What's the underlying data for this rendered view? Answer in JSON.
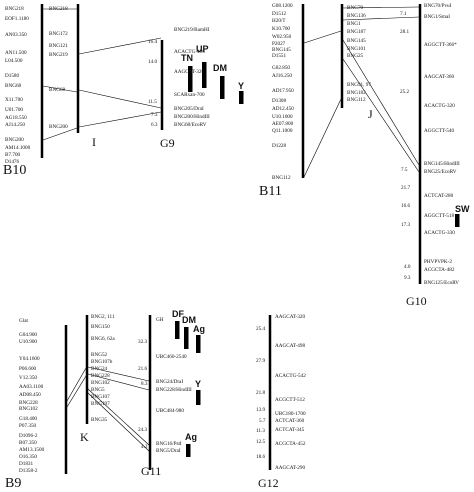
{
  "panels": {
    "B10": {
      "chromosome_label": "B10",
      "left_markers": [
        "BNG218",
        "EOF1.1180",
        "AN03.350",
        "AN11.500",
        "L04.500",
        "D1580",
        "BNG68",
        "X11.700",
        "U01.700",
        "AG18.550",
        "AJ14.250",
        "BNG200",
        "AM14.1000",
        "B7.700",
        "D1476"
      ],
      "right_markers": [
        "BNG218",
        "BNG172",
        "BNG121",
        "BNG219",
        "BNG68",
        "BNG200"
      ]
    },
    "I": {
      "label": "I"
    },
    "G9": {
      "label": "G9",
      "markers": [
        "BNG219/BamHI",
        "ACACTG-496",
        "AAGCAT-320",
        "SCARxan-700",
        "BNG205/DraI",
        "BNG200/HindIII",
        "BNG68/EcoRV"
      ],
      "distances": [
        "16.4",
        "14.0",
        "11.5",
        "7.3",
        "6.3"
      ],
      "traits": [
        "TN",
        "UP",
        "DM",
        "Y"
      ]
    },
    "B11": {
      "chromosome_label": "B11",
      "left_markers": [
        "G08.1200",
        "D1512",
        "H20/T",
        "K10.700",
        "W02.950",
        "P2027",
        "BNG145",
        "D1551",
        "G02.850",
        "AJ16.250",
        "AD17.950",
        "D1308",
        "AD12.450",
        "U10.1000",
        "AE07.800",
        "Q11.1000",
        "D1228",
        "BNG112"
      ],
      "right_markers": [
        "BNG70",
        "BNG136",
        "BNG1",
        "BNG187",
        "BNG145",
        "BNG101",
        "BNG25",
        "BNG91, 97",
        "BNG182",
        "BNG112"
      ]
    },
    "J": {
      "label": "J"
    },
    "G10": {
      "label": "G10",
      "markers": [
        "BNG70/PvuI",
        "BNG1/SmaI",
        "AGGCTT-366*",
        "AAGCAT-360",
        "ACACTG-320",
        "AGGCTT-540",
        "BNG145/HindIII",
        "BNG25/EcoRV",
        "ACTCAT-280",
        "AGGCTT-518",
        "ACACTG-330",
        "PHVPVPK-2",
        "ACGCTA-482",
        "BNG125/EcoRV"
      ],
      "distances": [
        "7.1",
        "28.1",
        "25.2",
        "7.5",
        "21.7",
        "16.6",
        "17.3",
        "4.0",
        "9.3"
      ],
      "traits": [
        "SW"
      ]
    },
    "B9": {
      "chromosome_label": "B9",
      "left_markers": [
        "Glat",
        "G04.900",
        "U10.900",
        "Y04.1600",
        "P06.600",
        "V12.350",
        "AA03.1100",
        "AD08.450",
        "BNG228",
        "BNG102",
        "G18.400",
        "P07.350",
        "D1096-2",
        "B07.350",
        "AM13.1500",
        "O16.350",
        "D1831",
        "D1358-2"
      ],
      "right_markers": [
        "BNG2, 111",
        "BNG150",
        "BNG6, 62a",
        "BNG52",
        "BNG107b",
        "BNG24",
        "BNG228",
        "BNG102",
        "BNG5",
        "BNG107",
        "BNG197",
        "BNG35"
      ]
    },
    "K": {
      "label": "K"
    },
    "G11": {
      "label": "G11",
      "markers": [
        "GH",
        "UBC460-2540",
        "BNG24/DraI",
        "BNG228/HindIII",
        "UBC484-980",
        "BNG16/PstI",
        "BNG5/DraI"
      ],
      "distances": [
        "32.3",
        "21.6",
        "8.3",
        "24.3",
        "4.2"
      ],
      "traits": [
        "DF",
        "DM",
        "Ag",
        "Y",
        "Ag"
      ]
    },
    "G12": {
      "label": "G12",
      "markers": [
        "AAGCAT-320",
        "AAGCAT-498",
        "ACACTG-542",
        "ACGCTT-512",
        "UBC180-1700",
        "ACTCAT-360",
        "ACTCAT-345",
        "ACGCTA-452",
        "AAGCAT-290"
      ],
      "distances": [
        "25.4",
        "27.9",
        "21.8",
        "13.9",
        "5.7",
        "11.3",
        "12.5",
        "18.6"
      ]
    }
  }
}
